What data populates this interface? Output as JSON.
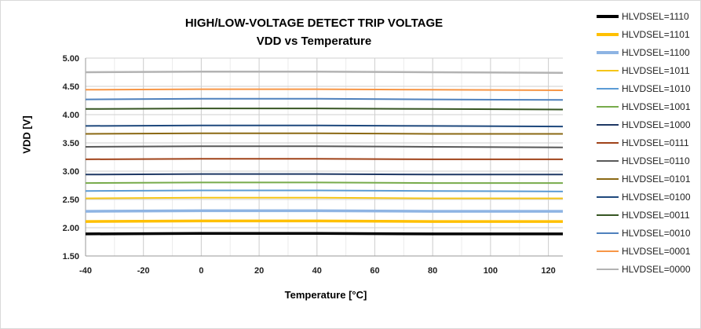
{
  "chart_data": {
    "type": "line",
    "title": "HIGH/LOW-VOLTAGE DETECT TRIP VOLTAGE",
    "subtitle": "VDD vs Temperature",
    "xlabel": "Temperature [°C]",
    "ylabel": "VDD [V]",
    "xlim": [
      -40,
      125
    ],
    "ylim": [
      1.5,
      5.0
    ],
    "x_ticks": [
      -40,
      -20,
      0,
      20,
      40,
      60,
      80,
      100,
      120
    ],
    "y_ticks": [
      "1.50",
      "2.00",
      "2.50",
      "3.00",
      "3.50",
      "4.00",
      "4.50",
      "5.00"
    ],
    "grid": true,
    "legend_position": "right",
    "x": [
      -40,
      0,
      40,
      80,
      125
    ],
    "series": [
      {
        "name": "HLVDSEL=1110",
        "color": "#000000",
        "values": [
          1.89,
          1.9,
          1.9,
          1.89,
          1.89
        ]
      },
      {
        "name": "HLVDSEL=1101",
        "color": "#ffc000",
        "values": [
          2.11,
          2.12,
          2.12,
          2.11,
          2.11
        ]
      },
      {
        "name": "HLVDSEL=1100",
        "color": "#8eb4e3",
        "values": [
          2.29,
          2.3,
          2.3,
          2.29,
          2.29
        ]
      },
      {
        "name": "HLVDSEL=1011",
        "color": "#f5c518",
        "values": [
          2.52,
          2.53,
          2.53,
          2.52,
          2.52
        ]
      },
      {
        "name": "HLVDSEL=1010",
        "color": "#5b9bd5",
        "values": [
          2.65,
          2.66,
          2.66,
          2.65,
          2.64
        ]
      },
      {
        "name": "HLVDSEL=1001",
        "color": "#77ab4b",
        "values": [
          2.79,
          2.8,
          2.8,
          2.79,
          2.79
        ]
      },
      {
        "name": "HLVDSEL=1000",
        "color": "#1f3864",
        "values": [
          2.94,
          2.95,
          2.95,
          2.94,
          2.94
        ]
      },
      {
        "name": "HLVDSEL=0111",
        "color": "#a0431a",
        "values": [
          3.21,
          3.22,
          3.22,
          3.21,
          3.21
        ]
      },
      {
        "name": "HLVDSEL=0110",
        "color": "#595959",
        "values": [
          3.43,
          3.44,
          3.44,
          3.43,
          3.42
        ]
      },
      {
        "name": "HLVDSEL=0101",
        "color": "#8b6914",
        "values": [
          3.66,
          3.67,
          3.67,
          3.66,
          3.66
        ]
      },
      {
        "name": "HLVDSEL=0100",
        "color": "#1f497d",
        "values": [
          3.8,
          3.81,
          3.81,
          3.8,
          3.79
        ]
      },
      {
        "name": "HLVDSEL=0011",
        "color": "#375623",
        "values": [
          4.1,
          4.11,
          4.11,
          4.1,
          4.09
        ]
      },
      {
        "name": "HLVDSEL=0010",
        "color": "#4f81bd",
        "values": [
          4.27,
          4.28,
          4.28,
          4.27,
          4.26
        ]
      },
      {
        "name": "HLVDSEL=0001",
        "color": "#f79646",
        "values": [
          4.44,
          4.45,
          4.45,
          4.44,
          4.43
        ]
      },
      {
        "name": "HLVDSEL=0000",
        "color": "#b3b3b3",
        "values": [
          4.75,
          4.76,
          4.76,
          4.75,
          4.74
        ]
      }
    ]
  }
}
